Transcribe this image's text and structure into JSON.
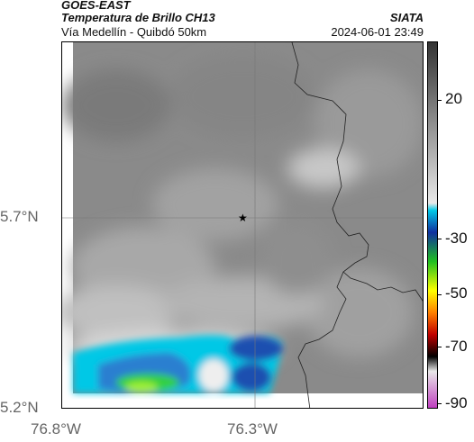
{
  "header": {
    "satellite": "GOES-EAST",
    "product": "Temperatura de Brillo CH13",
    "region": "Vía Medellín - Quibdó 50km",
    "brand": "SIATA",
    "datetime": "2024-06-01 23:49"
  },
  "axes": {
    "y_labels": [
      "5.7°N",
      "5.2°N"
    ],
    "x_labels": [
      "76.8°W",
      "76.3°W"
    ]
  },
  "colorbar": {
    "labels": [
      "20",
      "-30",
      "-50",
      "-70",
      "-90"
    ],
    "colors": {
      "gray_dark": "#333333",
      "gray_light": "#e8e8e8",
      "cyan": "#00c8e6",
      "blue": "#1030a0",
      "green": "#20c020",
      "yellow": "#ffff00",
      "orange": "#ff8000",
      "red": "#c00000",
      "black": "#000000",
      "magenta": "#c040c0"
    }
  },
  "map": {
    "marker_icon": "star-icon"
  }
}
